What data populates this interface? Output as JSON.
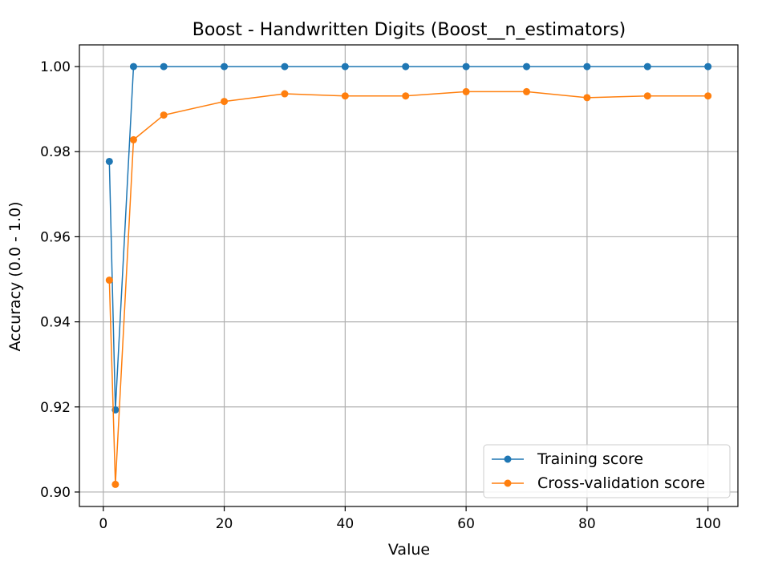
{
  "chart_data": {
    "type": "line",
    "title": "Boost - Handwritten Digits (Boost__n_estimators)",
    "xlabel": "Value",
    "ylabel": "Accuracy (0.0 - 1.0)",
    "xlim": [
      -3.95,
      104.95
    ],
    "ylim": [
      0.8966,
      1.0051
    ],
    "xticks": [
      0,
      20,
      40,
      60,
      80,
      100
    ],
    "xtick_labels": [
      "0",
      "20",
      "40",
      "60",
      "80",
      "100"
    ],
    "yticks": [
      0.9,
      0.92,
      0.94,
      0.96,
      0.98,
      1.0
    ],
    "ytick_labels": [
      "0.90",
      "0.92",
      "0.94",
      "0.96",
      "0.98",
      "1.00"
    ],
    "grid": true,
    "legend_position": "lower-right",
    "x": [
      1,
      2,
      5,
      10,
      20,
      30,
      40,
      50,
      60,
      70,
      80,
      90,
      100
    ],
    "series": [
      {
        "name": "Training score",
        "color": "#1f77b4",
        "values": [
          0.9777,
          0.9193,
          1.0,
          1.0,
          1.0,
          1.0,
          1.0,
          1.0,
          1.0,
          1.0,
          1.0,
          1.0,
          1.0
        ]
      },
      {
        "name": "Cross-validation score",
        "color": "#ff7f0e",
        "values": [
          0.9498,
          0.9018,
          0.9828,
          0.9886,
          0.9918,
          0.9936,
          0.9931,
          0.9931,
          0.9941,
          0.9941,
          0.9927,
          0.9931,
          0.9931
        ]
      }
    ]
  }
}
